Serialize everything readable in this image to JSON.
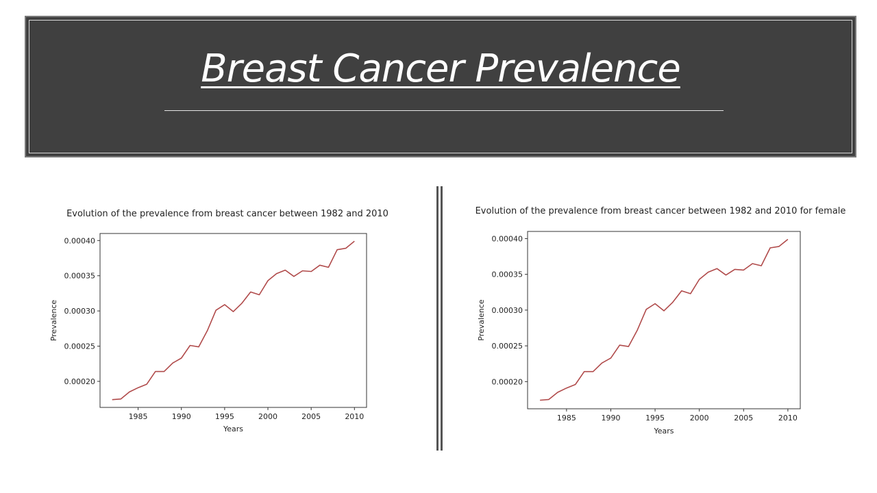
{
  "slide": {
    "title": "Breast Cancer Prevalence"
  },
  "chart_data": [
    {
      "type": "line",
      "title": "Evolution of the prevalence from breast cancer between 1982 and 2010",
      "xlabel": "Years",
      "ylabel": "Prevalence",
      "x": [
        1982,
        1983,
        1984,
        1985,
        1986,
        1987,
        1988,
        1989,
        1990,
        1991,
        1992,
        1993,
        1994,
        1995,
        1996,
        1997,
        1998,
        1999,
        2000,
        2001,
        2002,
        2003,
        2004,
        2005,
        2006,
        2007,
        2008,
        2009,
        2010
      ],
      "series": [
        {
          "values": [
            0.000174,
            0.000175,
            0.000185,
            0.000191,
            0.000196,
            0.000214,
            0.000214,
            0.000226,
            0.000233,
            0.000251,
            0.000249,
            0.000272,
            0.000301,
            0.000309,
            0.000299,
            0.000311,
            0.000327,
            0.000323,
            0.000343,
            0.000353,
            0.000358,
            0.000349,
            0.000357,
            0.000356,
            0.000365,
            0.000362,
            0.000387,
            0.000389,
            0.000399
          ],
          "color": "#b04a4a"
        }
      ],
      "xticks": [
        1985,
        1990,
        1995,
        2000,
        2005,
        2010
      ],
      "xtick_labels": [
        "1985",
        "1990",
        "1995",
        "2000",
        "2005",
        "2010"
      ],
      "yticks": [
        0.0002,
        0.00025,
        0.0003,
        0.00035,
        0.0004
      ],
      "ytick_labels": [
        "0.00020",
        "0.00025",
        "0.00030",
        "0.00035",
        "0.00040"
      ],
      "xlim": [
        1980.6,
        2011.4
      ],
      "ylim": [
        0.000163,
        0.00041
      ]
    },
    {
      "type": "line",
      "title": "Evolution of the prevalence from breast cancer between 1982 and 2010 for female",
      "xlabel": "Years",
      "ylabel": "Prevalence",
      "x": [
        1982,
        1983,
        1984,
        1985,
        1986,
        1987,
        1988,
        1989,
        1990,
        1991,
        1992,
        1993,
        1994,
        1995,
        1996,
        1997,
        1998,
        1999,
        2000,
        2001,
        2002,
        2003,
        2004,
        2005,
        2006,
        2007,
        2008,
        2009,
        2010
      ],
      "series": [
        {
          "values": [
            0.000174,
            0.000175,
            0.000185,
            0.000191,
            0.000196,
            0.000214,
            0.000214,
            0.000226,
            0.000233,
            0.000251,
            0.000249,
            0.000272,
            0.000301,
            0.000309,
            0.000299,
            0.000311,
            0.000327,
            0.000323,
            0.000343,
            0.000353,
            0.000358,
            0.000349,
            0.000357,
            0.000356,
            0.000365,
            0.000362,
            0.000387,
            0.000389,
            0.000399
          ],
          "color": "#b04a4a"
        }
      ],
      "xticks": [
        1985,
        1990,
        1995,
        2000,
        2005,
        2010
      ],
      "xtick_labels": [
        "1985",
        "1990",
        "1995",
        "2000",
        "2005",
        "2010"
      ],
      "yticks": [
        0.0002,
        0.00025,
        0.0003,
        0.00035,
        0.0004
      ],
      "ytick_labels": [
        "0.00020",
        "0.00025",
        "0.00030",
        "0.00035",
        "0.00040"
      ],
      "xlim": [
        1980.6,
        2011.4
      ],
      "ylim": [
        0.000162,
        0.00041
      ]
    }
  ]
}
